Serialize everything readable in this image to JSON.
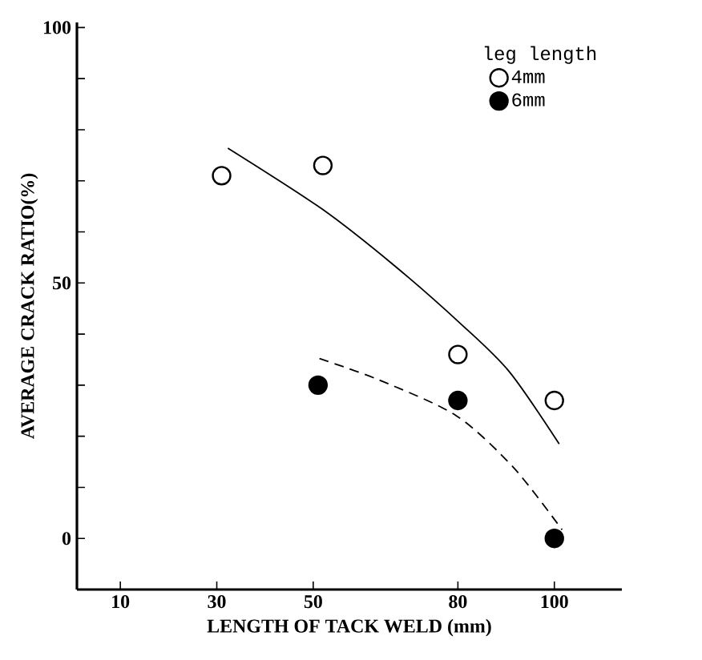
{
  "chart_data": {
    "type": "scatter",
    "xlabel": "LENGTH OF TACK WELD (mm)",
    "ylabel": "AVERAGE CRACK RATIO(%)",
    "legend_title": "leg length",
    "xlim": [
      1,
      114
    ],
    "xticks": [
      10,
      30,
      50,
      80,
      100
    ],
    "ylim": [
      -10,
      101
    ],
    "yticks": [
      {
        "value": 0,
        "label": "0"
      },
      {
        "value": 10,
        "label": null
      },
      {
        "value": 20,
        "label": null
      },
      {
        "value": 30,
        "label": null
      },
      {
        "value": 40,
        "label": null
      },
      {
        "value": 50,
        "label": "50"
      },
      {
        "value": 60,
        "label": null
      },
      {
        "value": 70,
        "label": null
      },
      {
        "value": 80,
        "label": null
      },
      {
        "value": 90,
        "label": null
      },
      {
        "value": 100,
        "label": "100"
      }
    ],
    "legend": "top right",
    "grid": false,
    "marker": "circle",
    "series": [
      {
        "name": "4mm",
        "color": "#ffffff",
        "x": [
          31,
          52,
          80,
          100
        ],
        "values": [
          71,
          73,
          36,
          27
        ]
      },
      {
        "name": "6mm",
        "color": "#000000",
        "x": [
          51,
          80,
          100
        ],
        "values": [
          30,
          27,
          0
        ]
      },
      {
        "type": "line",
        "color": "#000000",
        "line_style": "solid",
        "marker": "none",
        "x": [
          32.3,
          51.8,
          66.7,
          80.6,
          90.6,
          101
        ],
        "values": [
          76.4,
          64.5,
          53.5,
          42,
          32.7,
          18.5
        ]
      },
      {
        "type": "line",
        "color": "#000000",
        "line_style": "dashed",
        "marker": "none",
        "x": [
          51.3,
          63.7,
          79.7,
          91.6,
          101.6
        ],
        "values": [
          35.2,
          31,
          24,
          13.8,
          1.7
        ]
      }
    ]
  }
}
